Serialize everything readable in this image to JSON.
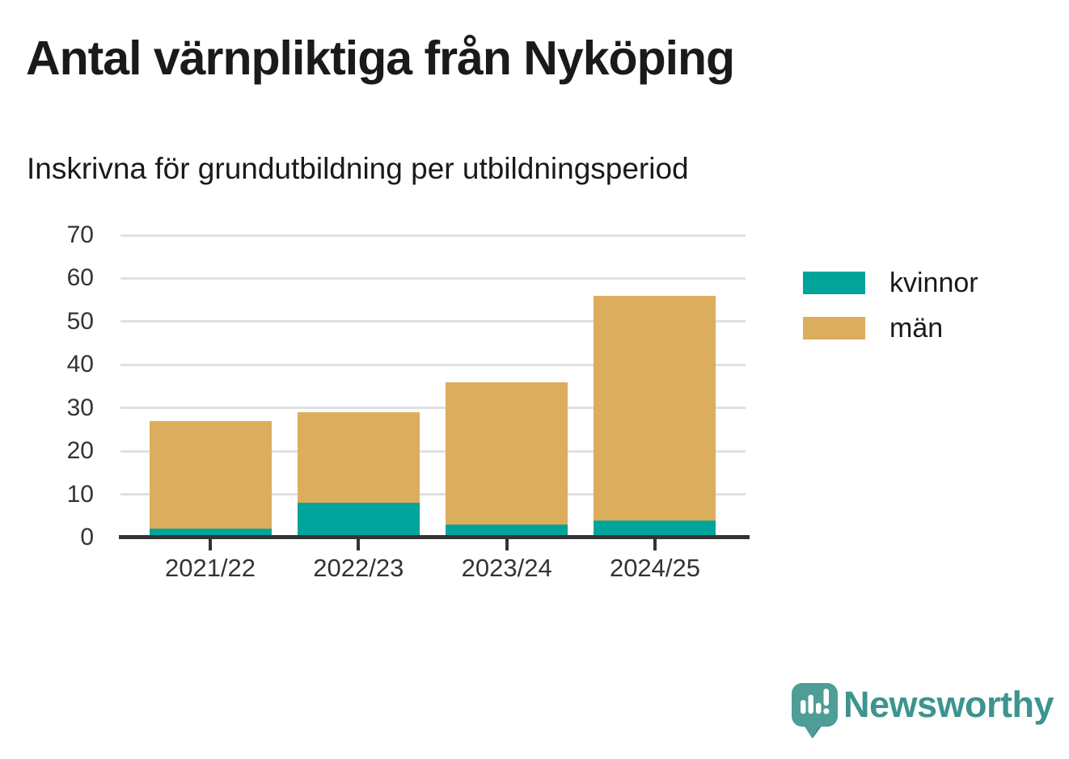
{
  "header": {
    "title": "Antal värnpliktiga från Nyköping",
    "subtitle": "Inskrivna för grundutbildning per utbildningsperiod"
  },
  "chart_data": {
    "type": "bar",
    "stacked": true,
    "title": "Antal värnpliktiga från Nyköping",
    "subtitle": "Inskrivna för grundutbildning per utbildningsperiod",
    "categories": [
      "2021/22",
      "2022/23",
      "2023/24",
      "2024/25"
    ],
    "series": [
      {
        "name": "kvinnor",
        "color": "#00a49b",
        "values": [
          2,
          8,
          3,
          4
        ]
      },
      {
        "name": "män",
        "color": "#dbad5d",
        "values": [
          25,
          21,
          33,
          52
        ]
      }
    ],
    "stack_totals": [
      27,
      29,
      36,
      56
    ],
    "xlabel": "",
    "ylabel": "",
    "ylim": [
      0,
      70
    ],
    "yticks": [
      0,
      10,
      20,
      30,
      40,
      50,
      60,
      70
    ],
    "grid": "horizontal",
    "legend_position": "right"
  },
  "branding": {
    "logo_text": "Newsworthy",
    "logo_icon": "speech-bubble-bar-chart-icon",
    "logo_color": "#4e9d97",
    "logo_shadow_color": "#3e8a84",
    "logo_text_color": "#3d948e"
  },
  "colors": {
    "background": "#ffffff",
    "title_text": "#1a1a1a",
    "axis": "#333333",
    "gridline": "#e0e0e0",
    "series_kvinnor": "#00a49b",
    "series_man": "#dbad5d"
  }
}
